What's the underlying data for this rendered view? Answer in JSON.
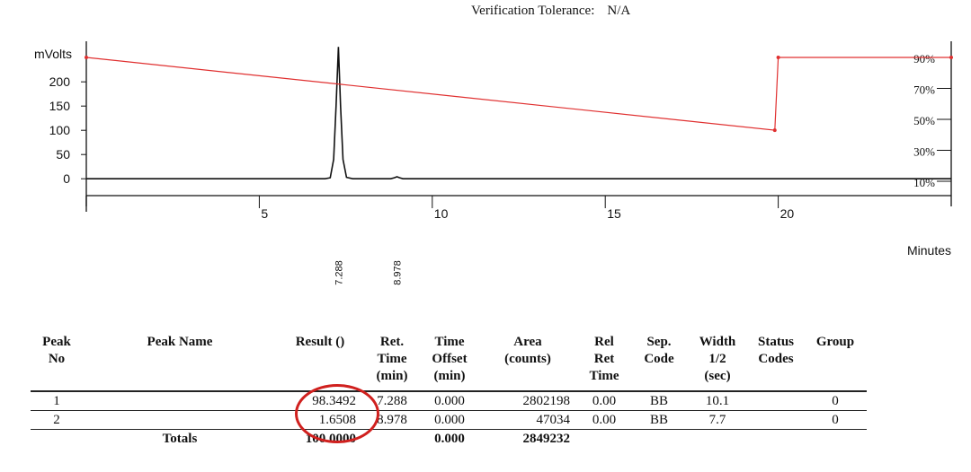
{
  "header": {
    "tolerance_label": "Verification Tolerance:",
    "tolerance_value": "N/A"
  },
  "chart_data": {
    "type": "line",
    "ylabel": "mVolts",
    "xlabel": "Minutes",
    "xlim": [
      0,
      25
    ],
    "ylim": [
      -20,
      280
    ],
    "x_ticks": [
      5,
      10,
      15,
      20
    ],
    "y_ticks": [
      0,
      50,
      100,
      150,
      200
    ],
    "right_ticks": [
      "90%",
      "70%",
      "50%",
      "30%",
      "10%"
    ],
    "right_lim": [
      10,
      90
    ],
    "grid": false,
    "series": [
      {
        "color": "#111111",
        "x": [
          0,
          6.9,
          7.05,
          7.15,
          7.22,
          7.288,
          7.35,
          7.42,
          7.52,
          7.7,
          8.8,
          8.9,
          8.978,
          9.06,
          9.15,
          25
        ],
        "y": [
          0,
          0,
          2,
          40,
          150,
          272,
          150,
          40,
          3,
          0,
          0,
          2,
          4,
          2,
          0,
          0
        ]
      },
      {
        "color": "#e03030",
        "x": [
          0,
          19.9,
          20.0,
          25
        ],
        "y_right": [
          90,
          43,
          90,
          90
        ]
      }
    ],
    "peak_labels": [
      {
        "x": 7.288,
        "text": "7.288"
      },
      {
        "x": 8.978,
        "text": "8.978"
      }
    ]
  },
  "table": {
    "headers": [
      "Peak\nNo",
      "Peak Name",
      "Result ()",
      "Ret.\nTime\n(min)",
      "Time\nOffset\n(min)",
      "Area\n(counts)",
      "Rel\nRet\nTime",
      "Sep.\nCode",
      "Width\n1/2\n(sec)",
      "Status\nCodes",
      "Group"
    ],
    "rows": [
      [
        "1",
        "",
        "98.3492",
        "7.288",
        "0.000",
        "2802198",
        "0.00",
        "BB",
        "10.1",
        "",
        "0"
      ],
      [
        "2",
        "",
        "1.6508",
        "8.978",
        "0.000",
        "47034",
        "0.00",
        "BB",
        "7.7",
        "",
        "0"
      ]
    ],
    "totals": [
      "",
      "Totals",
      "100.0000",
      "",
      "0.000",
      "2849232",
      "",
      "",
      "",
      "",
      ""
    ]
  }
}
